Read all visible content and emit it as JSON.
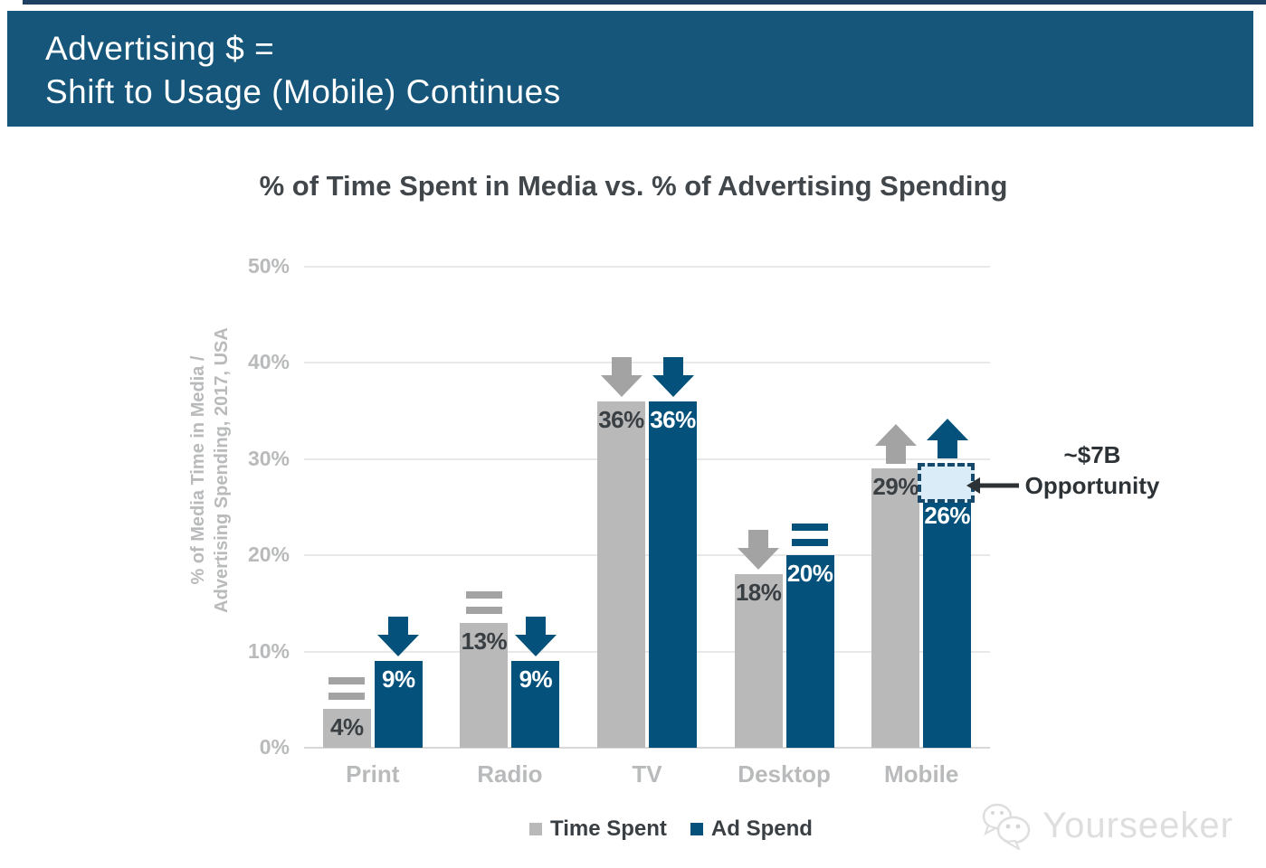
{
  "header": {
    "title_line1": "Advertising $ =",
    "title_line2": "Shift to Usage (Mobile) Continues",
    "background_color": "#16567a",
    "text_color": "#ffffff"
  },
  "chart_data": {
    "type": "bar",
    "title": "% of Time Spent in Media vs. % of Advertising Spending",
    "ylabel_line1": "% of Media Time in Media /",
    "ylabel_line2": "Advertising Spending, 2017, USA",
    "ylim": [
      0,
      50
    ],
    "yticks": [
      "0%",
      "10%",
      "20%",
      "30%",
      "40%",
      "50%"
    ],
    "grid": "horizontal",
    "legend_position": "bottom",
    "categories": [
      "Print",
      "Radio",
      "TV",
      "Desktop",
      "Mobile"
    ],
    "series": [
      {
        "name": "Time Spent",
        "color": "#b9b9b9",
        "indicator_color": "#a3a3a3",
        "label_color": "#3a3f44",
        "values": [
          4,
          13,
          36,
          18,
          29
        ],
        "trends": [
          "flat",
          "flat",
          "down",
          "down",
          "up"
        ]
      },
      {
        "name": "Ad Spend",
        "color": "#04527b",
        "indicator_color": "#04527b",
        "label_color": "#ffffff",
        "values": [
          9,
          9,
          36,
          20,
          26
        ],
        "trends": [
          "down",
          "down",
          "down",
          "flat",
          "up"
        ]
      }
    ],
    "annotation": {
      "line1": "~$7B",
      "line2": "Opportunity",
      "target_category": "Mobile",
      "target_series": "Ad Spend",
      "gap_top_pct": 29.6,
      "gap_bottom_pct": 26,
      "box_fill": "#d9ecf8",
      "box_border": "#17496d",
      "text_color": "#2d3236"
    }
  },
  "watermark": {
    "text": "Yourseeker"
  }
}
